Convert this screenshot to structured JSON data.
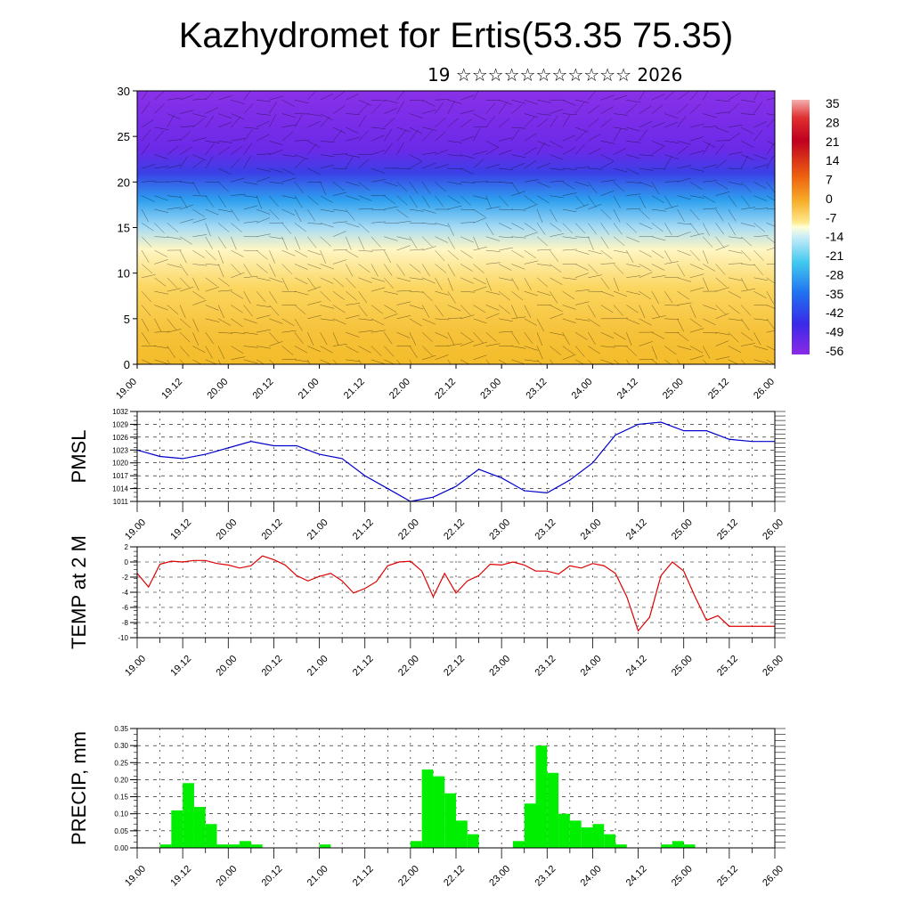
{
  "header": {
    "title": "Kazhydromet for Ertis(53.35 75.35)",
    "subtitle": "19 ☆☆☆☆☆☆☆☆☆☆☆ 2026"
  },
  "colors": {
    "pmsl_line": "#0000cc",
    "temp_line": "#dd0000",
    "precip_bar": "#00ee00",
    "cross_section_palette": [
      "#8c2ae6",
      "#5a2ae6",
      "#2a3ce6",
      "#1e8cf0",
      "#3cc8f0",
      "#b4e6f8",
      "#fff8c0",
      "#fad24a",
      "#f0a020",
      "#e86010",
      "#d42020",
      "#b00020",
      "#f4b0b0"
    ]
  },
  "chart_data": [
    {
      "type": "heatmap",
      "title": "",
      "xlabel": "",
      "ylabel": "",
      "xlim": [
        0,
        14
      ],
      "ylim": [
        0,
        30
      ],
      "x_ticks": [
        "19.00",
        "19.12",
        "20.00",
        "20.12",
        "21.00",
        "21.12",
        "22.00",
        "22.12",
        "23.00",
        "23.12",
        "24.00",
        "24.12",
        "25.00",
        "25.12",
        "26.00"
      ],
      "y_ticks": [
        "0",
        "5",
        "10",
        "15",
        "20",
        "25",
        "30"
      ],
      "colorbar_labels": [
        "35",
        "28",
        "21",
        "14",
        "7",
        "0",
        "-7",
        "-14",
        "-21",
        "-28",
        "-35",
        "-42",
        "-49",
        "-56"
      ],
      "overlay": "wind barbs",
      "grid": false
    },
    {
      "type": "line",
      "ylabel": "PMSL",
      "xlim": [
        0,
        14
      ],
      "ylim": [
        1011,
        1032
      ],
      "x_ticks": [
        "19.00",
        "19.12",
        "20.00",
        "20.12",
        "21.00",
        "21.12",
        "22.00",
        "22.12",
        "23.00",
        "23.12",
        "24.00",
        "24.12",
        "25.00",
        "25.12",
        "26.00"
      ],
      "y_ticks": [
        "1011",
        "1014",
        "1017",
        "1020",
        "1023",
        "1026",
        "1029",
        "1032"
      ],
      "grid": true,
      "x": [
        0,
        0.5,
        1,
        1.5,
        2,
        2.5,
        3,
        3.5,
        4,
        4.5,
        5,
        5.5,
        6,
        6.5,
        7,
        7.5,
        8,
        8.5,
        9,
        9.5,
        10,
        10.5,
        11,
        11.5,
        12,
        12.5,
        13,
        13.5,
        14
      ],
      "values": [
        1023,
        1021.5,
        1021,
        1022,
        1023.5,
        1025,
        1024,
        1024,
        1022,
        1021,
        1017,
        1014,
        1011,
        1012,
        1014.5,
        1018.5,
        1016.5,
        1013.5,
        1013,
        1016,
        1020,
        1026.5,
        1029,
        1029.5,
        1027.5,
        1027.5,
        1025.5,
        1025,
        1025
      ]
    },
    {
      "type": "line",
      "ylabel": "TEMP at 2 M",
      "xlim": [
        0,
        14
      ],
      "ylim": [
        -10,
        2
      ],
      "x_ticks": [
        "19.00",
        "19.12",
        "20.00",
        "20.12",
        "21.00",
        "21.12",
        "22.00",
        "22.12",
        "23.00",
        "23.12",
        "24.00",
        "24.12",
        "25.00",
        "25.12",
        "26.00"
      ],
      "y_ticks": [
        "2",
        "0",
        "-2",
        "-4",
        "-6",
        "-8",
        "-10"
      ],
      "grid": true,
      "x": [
        0,
        0.25,
        0.5,
        0.75,
        1,
        1.25,
        1.5,
        1.75,
        2,
        2.25,
        2.5,
        2.75,
        3,
        3.25,
        3.5,
        3.75,
        4,
        4.25,
        4.5,
        4.75,
        5,
        5.25,
        5.5,
        5.75,
        6,
        6.25,
        6.5,
        6.75,
        7,
        7.25,
        7.5,
        7.75,
        8,
        8.25,
        8.5,
        8.75,
        9,
        9.25,
        9.5,
        9.75,
        10,
        10.25,
        10.5,
        10.75,
        11,
        11.25,
        11.5,
        11.75,
        12,
        12.25,
        12.5,
        12.75,
        13,
        13.25,
        13.5,
        13.75,
        14
      ],
      "values": [
        -1.5,
        -3.3,
        -0.3,
        0.1,
        0,
        0.2,
        0.2,
        -0.2,
        -0.4,
        -0.8,
        -0.5,
        0.8,
        0.3,
        -0.4,
        -1.8,
        -2.5,
        -1.9,
        -1.5,
        -2.5,
        -4.1,
        -3.5,
        -2.6,
        -0.5,
        0,
        0.1,
        -1.2,
        -4.6,
        -1.5,
        -4.1,
        -2.5,
        -1.8,
        -0.3,
        -0.4,
        0,
        -0.4,
        -1.2,
        -1.2,
        -1.6,
        -0.5,
        -0.8,
        -0.2,
        -0.5,
        -1.5,
        -4.6,
        -9.1,
        -7.3,
        -1.8,
        0,
        -1.2,
        -4.6,
        -7.7,
        -7.1,
        -8.5,
        -8.5,
        -8.5,
        -8.5,
        -8.5
      ]
    },
    {
      "type": "bar",
      "ylabel": "PRECIP, mm",
      "xlim": [
        0,
        14
      ],
      "ylim": [
        0,
        0.35
      ],
      "x_ticks": [
        "19.00",
        "19.12",
        "20.00",
        "20.12",
        "21.00",
        "21.12",
        "22.00",
        "22.12",
        "23.00",
        "23.12",
        "24.00",
        "24.12",
        "25.00",
        "25.12",
        "26.00"
      ],
      "y_ticks": [
        "0.35",
        "0.30",
        "0.25",
        "0.20",
        "0.15",
        "0.10",
        "0.05",
        "0.00"
      ],
      "grid": true,
      "x": [
        0.5,
        0.75,
        1,
        1.25,
        1.5,
        1.75,
        2,
        2.25,
        2.5,
        4,
        6,
        6.25,
        6.5,
        6.75,
        7,
        7.25,
        8.25,
        8.5,
        8.75,
        9,
        9.25,
        9.5,
        9.75,
        10,
        10.25,
        10.5,
        11.5,
        11.75,
        12
      ],
      "values": [
        0.01,
        0.11,
        0.19,
        0.12,
        0.07,
        0.01,
        0.01,
        0.02,
        0.01,
        0.01,
        0.02,
        0.23,
        0.21,
        0.16,
        0.08,
        0.04,
        0.02,
        0.13,
        0.3,
        0.22,
        0.1,
        0.08,
        0.06,
        0.07,
        0.04,
        0.01,
        0.01,
        0.02,
        0.01
      ]
    }
  ]
}
